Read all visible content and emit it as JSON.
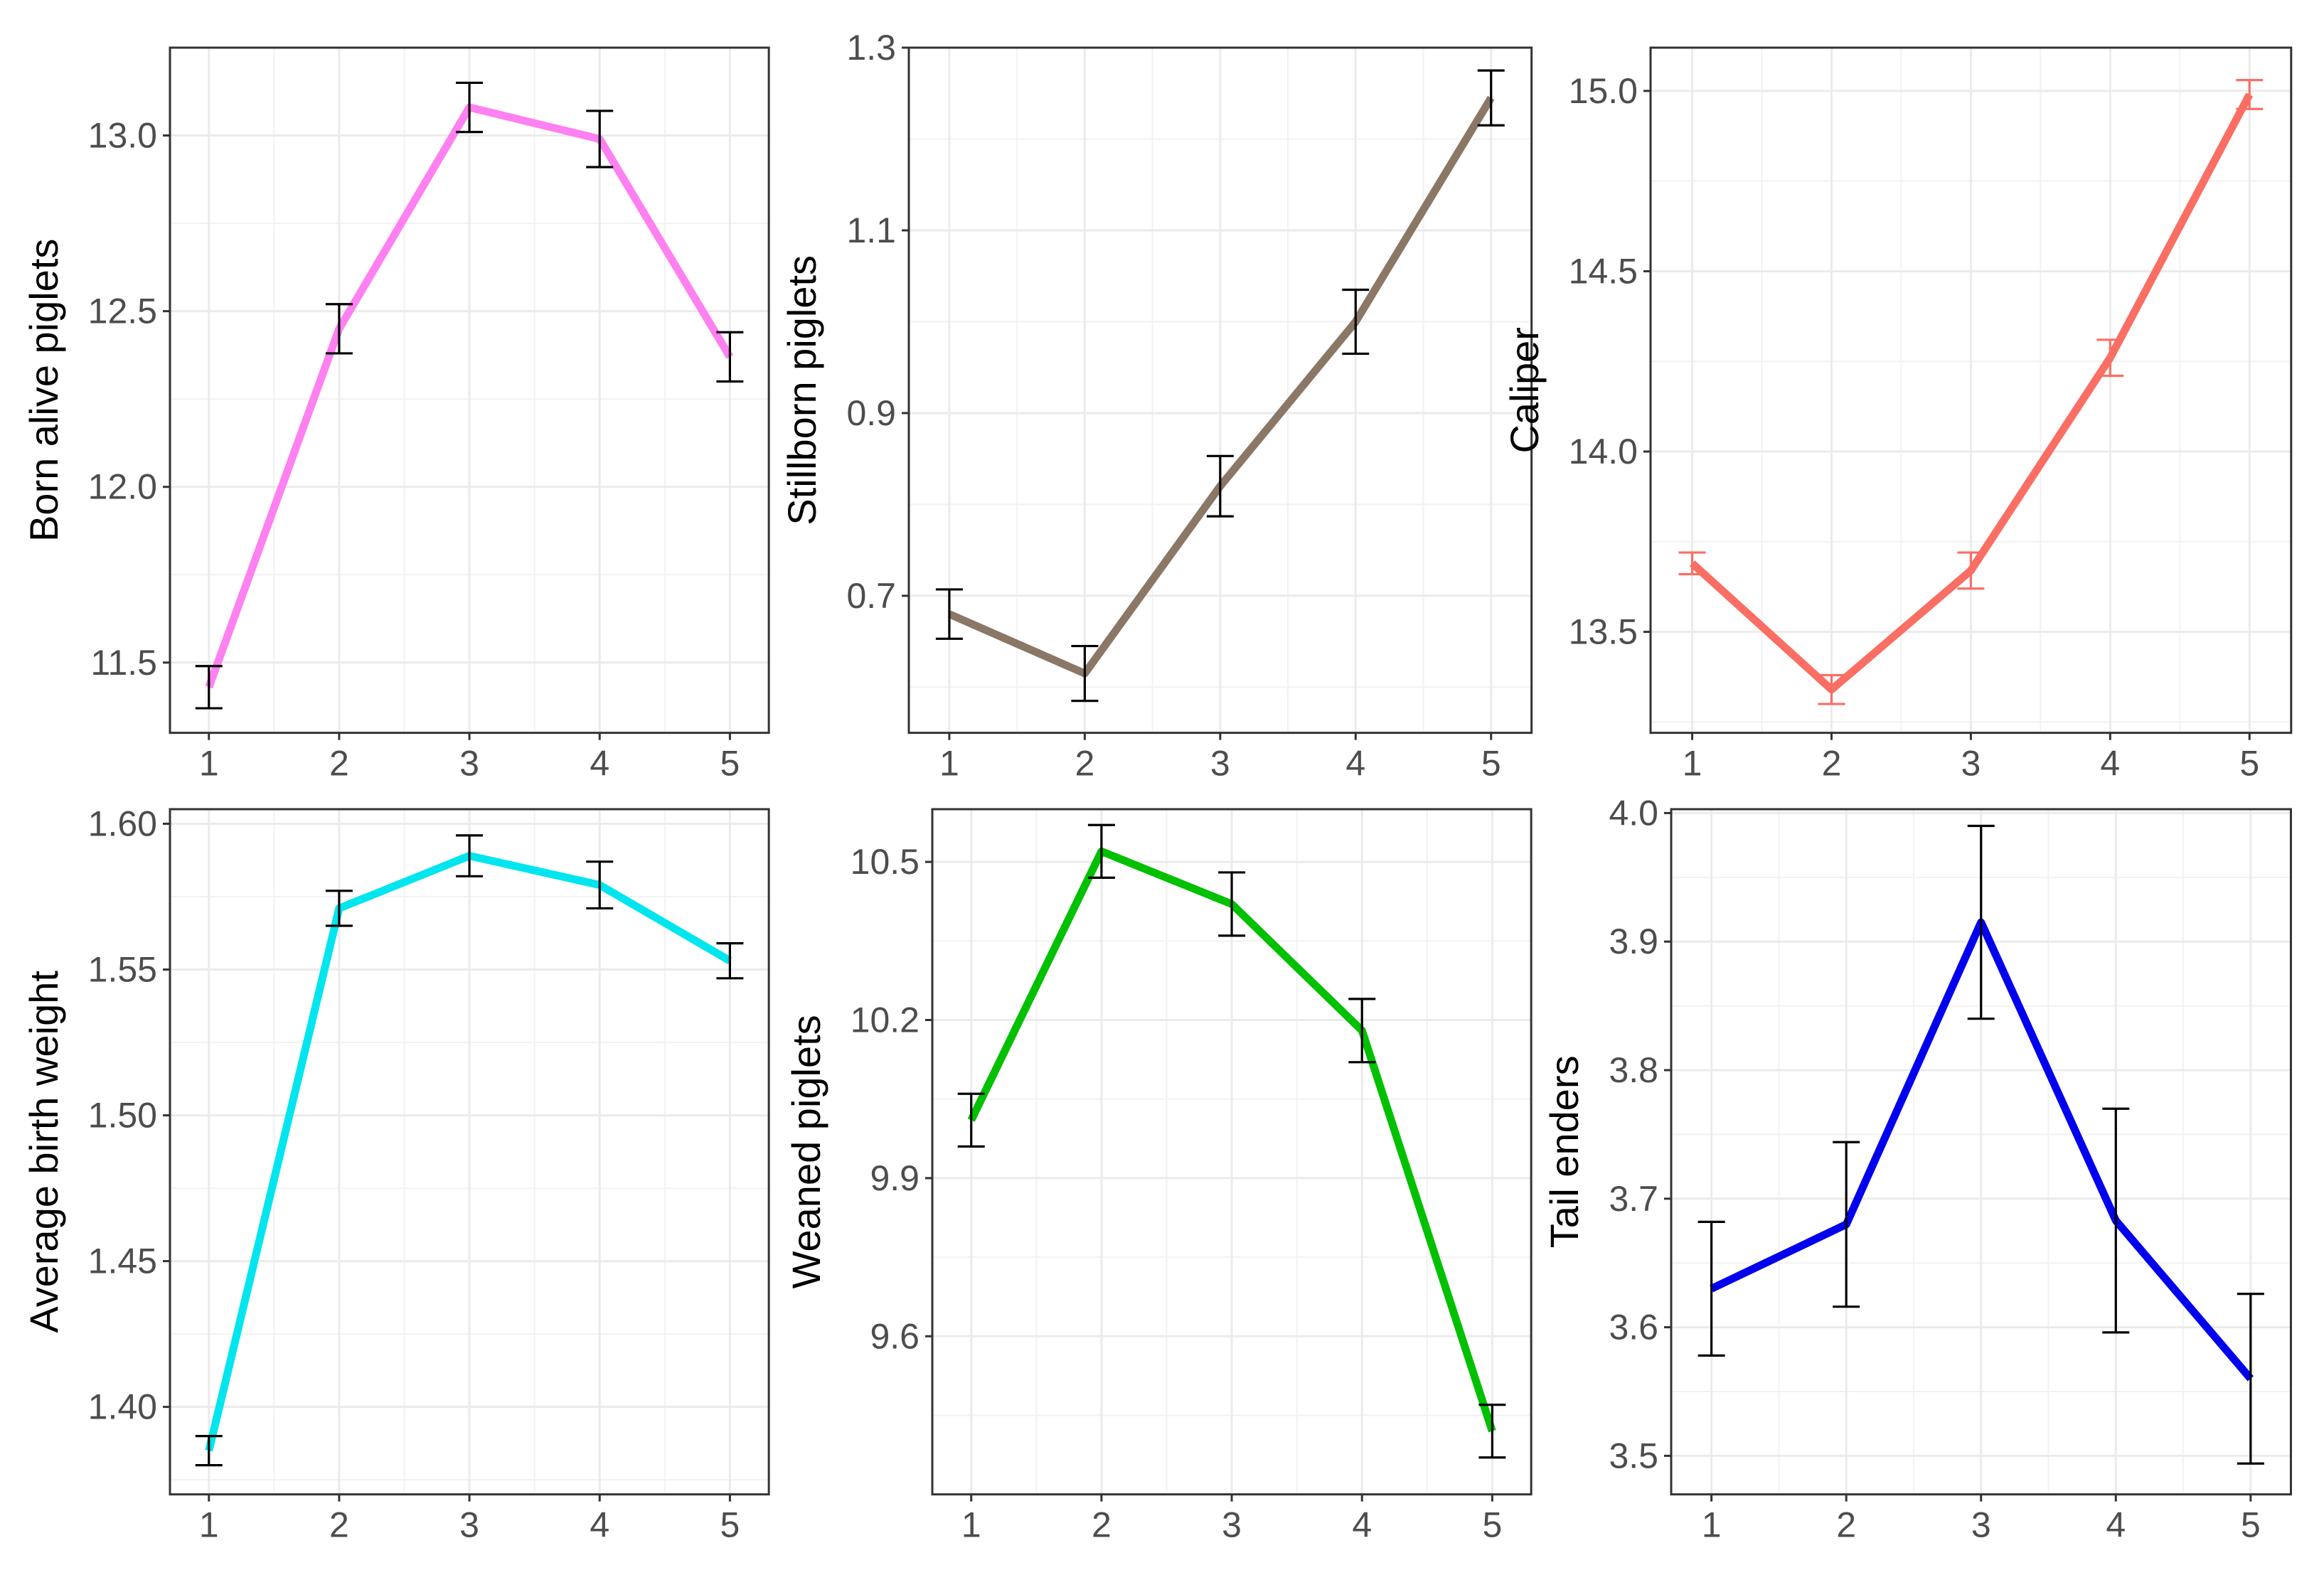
{
  "chart_data": [
    {
      "type": "line",
      "ylabel": "Born alive piglets",
      "x": [
        1,
        2,
        3,
        4,
        5
      ],
      "y": [
        11.43,
        12.45,
        13.08,
        12.99,
        12.37
      ],
      "err": [
        0.06,
        0.07,
        0.07,
        0.08,
        0.07
      ],
      "ylim": [
        11.3,
        13.25
      ],
      "yticks": [
        11.5,
        12.0,
        12.5,
        13.0
      ],
      "ytick_labels": [
        "11.5",
        "12.0",
        "12.5",
        "13.0"
      ],
      "xticks": [
        1,
        2,
        3,
        4,
        5
      ],
      "xtick_labels": [
        "1",
        "2",
        "3",
        "4",
        "5"
      ],
      "line_color": "#FF80F0",
      "errorbar_color": "#000000"
    },
    {
      "type": "line",
      "ylabel": "Stillborn piglets",
      "x": [
        1,
        2,
        3,
        4,
        5
      ],
      "y": [
        0.68,
        0.615,
        0.82,
        1.0,
        1.245
      ],
      "err": [
        0.027,
        0.03,
        0.033,
        0.035,
        0.03
      ],
      "ylim": [
        0.55,
        1.3
      ],
      "yticks": [
        0.7,
        0.9,
        1.1,
        1.3
      ],
      "ytick_labels": [
        "0.7",
        "0.9",
        "1.1",
        "1.3"
      ],
      "xticks": [
        1,
        2,
        3,
        4,
        5
      ],
      "xtick_labels": [
        "1",
        "2",
        "3",
        "4",
        "5"
      ],
      "line_color": "#8B7766",
      "errorbar_color": "#000000"
    },
    {
      "type": "line",
      "ylabel": "Caliper",
      "x": [
        1,
        2,
        3,
        4,
        5
      ],
      "y": [
        13.69,
        13.34,
        13.67,
        14.26,
        14.99
      ],
      "err": [
        0.03,
        0.04,
        0.05,
        0.05,
        0.04
      ],
      "ylim": [
        13.22,
        15.12
      ],
      "yticks": [
        13.5,
        14.0,
        14.5,
        15.0
      ],
      "ytick_labels": [
        "13.5",
        "14.0",
        "14.5",
        "15.0"
      ],
      "xticks": [
        1,
        2,
        3,
        4,
        5
      ],
      "xtick_labels": [
        "1",
        "2",
        "3",
        "4",
        "5"
      ],
      "line_color": "#FA6E64",
      "errorbar_color": "#FA6E64"
    },
    {
      "type": "line",
      "ylabel": "Average birth weight",
      "x": [
        1,
        2,
        3,
        4,
        5
      ],
      "y": [
        1.385,
        1.571,
        1.589,
        1.579,
        1.553
      ],
      "err": [
        0.005,
        0.006,
        0.007,
        0.008,
        0.006
      ],
      "ylim": [
        1.37,
        1.605
      ],
      "yticks": [
        1.4,
        1.45,
        1.5,
        1.55,
        1.6
      ],
      "ytick_labels": [
        "1.40",
        "1.45",
        "1.50",
        "1.55",
        "1.60"
      ],
      "xticks": [
        1,
        2,
        3,
        4,
        5
      ],
      "xtick_labels": [
        "1",
        "2",
        "3",
        "4",
        "5"
      ],
      "line_color": "#00E5EE",
      "errorbar_color": "#000000"
    },
    {
      "type": "line",
      "ylabel": "Weaned piglets",
      "x": [
        1,
        2,
        3,
        4,
        5
      ],
      "y": [
        10.01,
        10.52,
        10.42,
        10.18,
        9.42
      ],
      "err": [
        0.05,
        0.05,
        0.06,
        0.06,
        0.05
      ],
      "ylim": [
        9.3,
        10.6
      ],
      "yticks": [
        9.6,
        9.9,
        10.2,
        10.5
      ],
      "ytick_labels": [
        "9.6",
        "9.9",
        "10.2",
        "10.5"
      ],
      "xticks": [
        1,
        2,
        3,
        4,
        5
      ],
      "xtick_labels": [
        "1",
        "2",
        "3",
        "4",
        "5"
      ],
      "line_color": "#00C000",
      "errorbar_color": "#000000"
    },
    {
      "type": "line",
      "ylabel": "Tail enders",
      "x": [
        1,
        2,
        3,
        4,
        5
      ],
      "y": [
        3.63,
        3.68,
        3.915,
        3.683,
        3.56
      ],
      "err": [
        0.052,
        0.064,
        0.075,
        0.087,
        0.066
      ],
      "ylim": [
        3.47,
        4.003
      ],
      "yticks": [
        3.5,
        3.6,
        3.7,
        3.8,
        3.9,
        4.0
      ],
      "ytick_labels": [
        "3.5",
        "3.6",
        "3.7",
        "3.8",
        "3.9",
        "4.0"
      ],
      "xticks": [
        1,
        2,
        3,
        4,
        5
      ],
      "xtick_labels": [
        "1",
        "2",
        "3",
        "4",
        "5"
      ],
      "line_color": "#0000EE",
      "errorbar_color": "#000000"
    }
  ]
}
